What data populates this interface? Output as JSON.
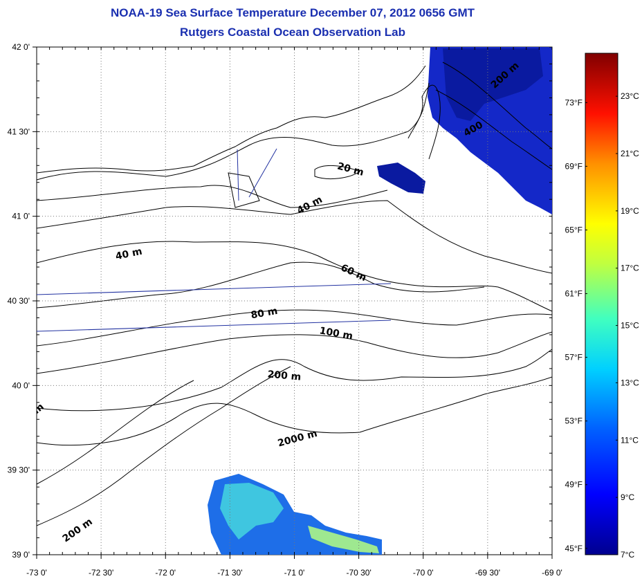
{
  "title": "NOAA-19 Sea Surface Temperature December 07, 2012 0656 GMT",
  "subtitle": "Rutgers Coastal Ocean Observation Lab",
  "map": {
    "lon_range": [
      -73,
      -69
    ],
    "lat_range": [
      39,
      42
    ],
    "lon_ticks": [
      {
        "value": -73,
        "label": "-73 0'"
      },
      {
        "value": -72.5,
        "label": "-72 30'"
      },
      {
        "value": -72,
        "label": "-72 0'"
      },
      {
        "value": -71.5,
        "label": "-71 30'"
      },
      {
        "value": -71,
        "label": "-71 0'"
      },
      {
        "value": -70.5,
        "label": "-70 30'"
      },
      {
        "value": -70,
        "label": "-70 0'"
      },
      {
        "value": -69.5,
        "label": "-69 30'"
      },
      {
        "value": -69,
        "label": "-69 0'"
      }
    ],
    "lat_ticks": [
      {
        "value": 42,
        "label": "42 0'"
      },
      {
        "value": 41.5,
        "label": "41 30'"
      },
      {
        "value": 41,
        "label": "41 0'"
      },
      {
        "value": 40.5,
        "label": "40 30'"
      },
      {
        "value": 40,
        "label": "40 0'"
      },
      {
        "value": 39.5,
        "label": "39 30'"
      },
      {
        "value": 39,
        "label": "39 0'"
      }
    ],
    "isobath_labels": [
      {
        "text": "200 m",
        "lon": -69.35,
        "lat": 41.82,
        "angle": -42
      },
      {
        "text": "400",
        "lon": -69.6,
        "lat": 41.5,
        "angle": -30
      },
      {
        "text": "20 m",
        "lon": -70.57,
        "lat": 41.26,
        "angle": 15
      },
      {
        "text": "40 m",
        "lon": -70.87,
        "lat": 41.05,
        "angle": -28
      },
      {
        "text": "40 m",
        "lon": -72.28,
        "lat": 40.76,
        "angle": -12
      },
      {
        "text": "60 m",
        "lon": -70.55,
        "lat": 40.65,
        "angle": 25
      },
      {
        "text": "80 m",
        "lon": -71.23,
        "lat": 40.41,
        "angle": -10
      },
      {
        "text": "100 m",
        "lon": -70.68,
        "lat": 40.29,
        "angle": 10
      },
      {
        "text": "200 m",
        "lon": -71.08,
        "lat": 40.04,
        "angle": 5
      },
      {
        "text": "2000 m",
        "lon": -70.97,
        "lat": 39.67,
        "angle": -15
      },
      {
        "text": "200 m",
        "lon": -72.67,
        "lat": 39.13,
        "angle": -35
      },
      {
        "text": "m",
        "lon": -72.97,
        "lat": 39.85,
        "angle": -40
      }
    ]
  },
  "colorbar": {
    "celsius_range": [
      7,
      24.5
    ],
    "celsius_labels": [
      {
        "value": 7,
        "label": "7°C"
      },
      {
        "value": 9,
        "label": "9°C"
      },
      {
        "value": 11,
        "label": "11°C"
      },
      {
        "value": 13,
        "label": "13°C"
      },
      {
        "value": 15,
        "label": "15°C"
      },
      {
        "value": 17,
        "label": "17°C"
      },
      {
        "value": 19,
        "label": "19°C"
      },
      {
        "value": 21,
        "label": "21°C"
      },
      {
        "value": 23,
        "label": "23°C"
      }
    ],
    "fahrenheit_labels": [
      {
        "value": 45,
        "label": "45°F"
      },
      {
        "value": 49,
        "label": "49°F"
      },
      {
        "value": 53,
        "label": "53°F"
      },
      {
        "value": 57,
        "label": "57°F"
      },
      {
        "value": 61,
        "label": "61°F"
      },
      {
        "value": 65,
        "label": "65°F"
      },
      {
        "value": 69,
        "label": "69°F"
      },
      {
        "value": 73,
        "label": "73°F"
      }
    ],
    "colors": [
      "#00008f",
      "#0000ff",
      "#0080ff",
      "#00ffff",
      "#80ff80",
      "#ffff00",
      "#ff8000",
      "#ff0000",
      "#800000"
    ]
  }
}
